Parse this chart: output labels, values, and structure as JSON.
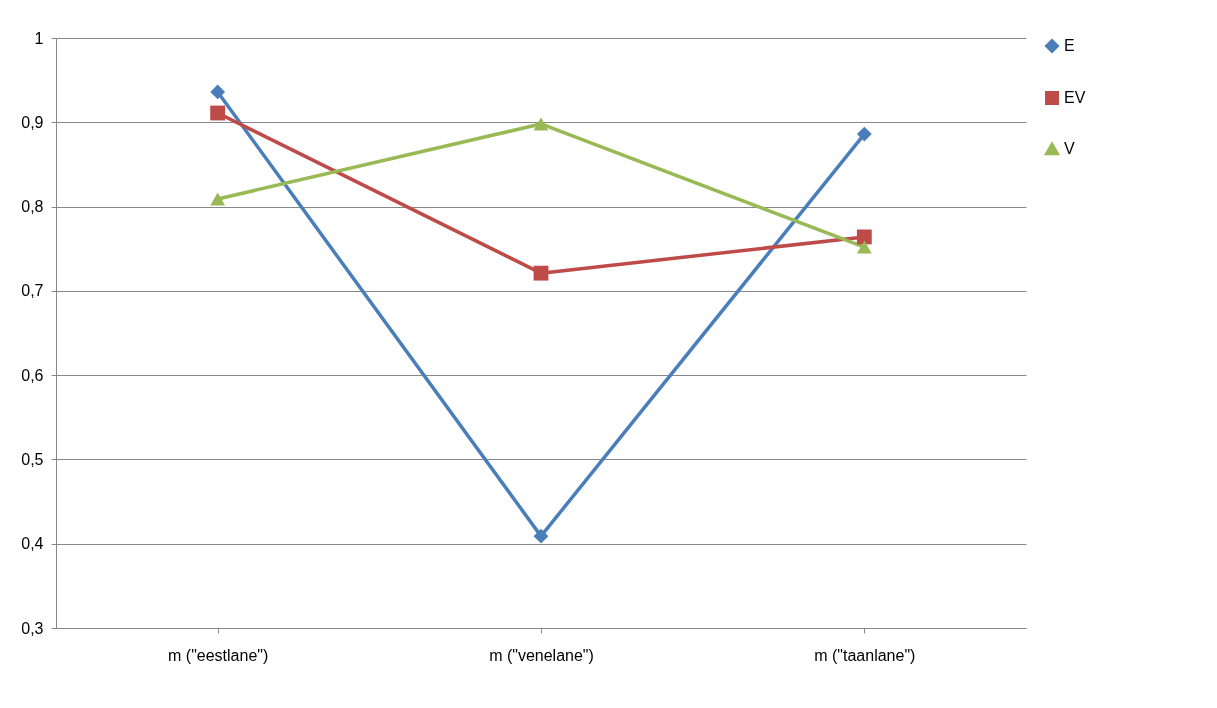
{
  "chart_data": {
    "type": "line",
    "categories": [
      "m (\"eestlane\")",
      "m (\"venelane\")",
      "m (\"taanlane\")"
    ],
    "series": [
      {
        "name": "E",
        "color": "#4a7ebb",
        "marker": "diamond",
        "values": [
          0.936,
          0.409,
          0.886
        ]
      },
      {
        "name": "EV",
        "color": "#be4b48",
        "marker": "square",
        "values": [
          0.911,
          0.721,
          0.764
        ]
      },
      {
        "name": "V",
        "color": "#98b954",
        "marker": "triangle",
        "values": [
          0.809,
          0.898,
          0.752
        ]
      }
    ],
    "ylim": [
      0.3,
      1
    ],
    "yticks": [
      {
        "value": 0.3,
        "label": "0,3"
      },
      {
        "value": 0.4,
        "label": "0,4"
      },
      {
        "value": 0.5,
        "label": "0,5"
      },
      {
        "value": 0.6,
        "label": "0,6"
      },
      {
        "value": 0.7,
        "label": "0,7"
      },
      {
        "value": 0.8,
        "label": "0,8"
      },
      {
        "value": 0.9,
        "label": "0,9"
      },
      {
        "value": 1,
        "label": "1"
      }
    ],
    "grid": "y",
    "legend": "right",
    "line_style": "solid"
  }
}
